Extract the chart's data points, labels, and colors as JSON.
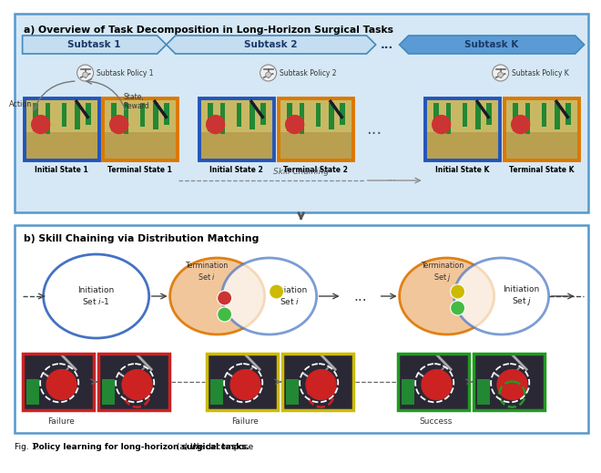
{
  "title_a": "a) Overview of Task Decomposition in Long-Horizon Surgical Tasks",
  "title_b": "b) Skill Chaining via Distribution Matching",
  "caption_plain": "Fig. 1: ",
  "caption_bold": "Policy learning for long-horizon surgical tasks.",
  "caption_plain2": " (a) We decompose",
  "panel_a_bg": "#d6e8f5",
  "panel_b_bg": "#ffffff",
  "outer_border_color": "#5599cc",
  "chevron_light": "#c5ddf0",
  "chevron_dark": "#5b9bd5",
  "chevron_edge": "#4488bb",
  "chevron_text": "#1a3a6a",
  "blue_border": "#2255bb",
  "orange_border": "#dd7700",
  "red_border": "#cc2222",
  "yellow_border": "#ccbb00",
  "green_border": "#229922",
  "circle_blue": "#4472c4",
  "circle_orange_fill": "#f0c090",
  "circle_orange_edge": "#dd7700",
  "dot_red": "#cc3333",
  "dot_green": "#44bb44",
  "dot_yellow": "#ccbb00",
  "img_bg_tan": "#d8c880",
  "img_bg_dark": "#3a3540",
  "arrow_color": "#666666",
  "subtask_labels": [
    "Subtask 1",
    "Subtask 2",
    "Subtask K"
  ],
  "policy_labels": [
    "Subtask Policy 1",
    "Subtask Policy 2",
    "Subtask Policy K"
  ],
  "state_labels_a": [
    [
      "Initial State 1",
      "Terminal State 1"
    ],
    [
      "Initial State 2",
      "Terminal State 2"
    ],
    [
      "Initial State K",
      "Terminal State K"
    ]
  ],
  "bottom_labels": [
    "Failure",
    "Failure",
    "Success"
  ],
  "fig_width": 6.4,
  "fig_height": 4.99
}
